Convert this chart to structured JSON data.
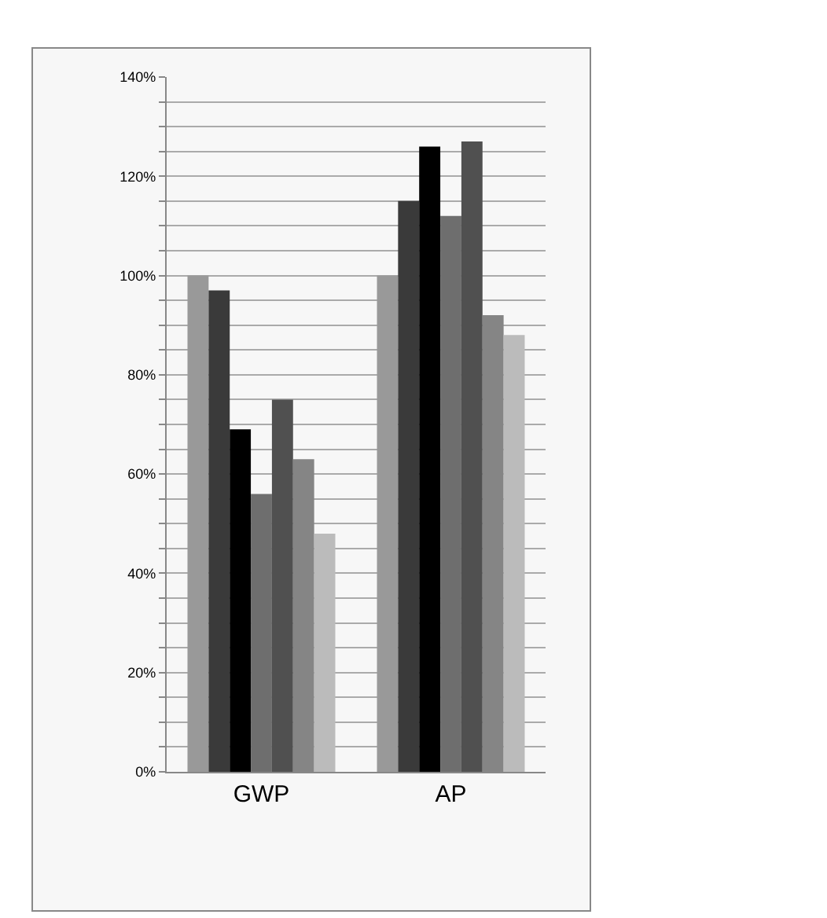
{
  "chart_data": {
    "type": "bar",
    "categories": [
      "GWP",
      "AP"
    ],
    "series": [
      {
        "color": "#999999",
        "values": [
          100,
          100
        ]
      },
      {
        "color": "#3a3a3a",
        "values": [
          97,
          115
        ]
      },
      {
        "color": "#000000",
        "values": [
          69,
          126
        ]
      },
      {
        "color": "#6e6e6e",
        "values": [
          56,
          112
        ]
      },
      {
        "color": "#505050",
        "values": [
          75,
          127
        ]
      },
      {
        "color": "#858585",
        "values": [
          63,
          92
        ]
      },
      {
        "color": "#bbbbbb",
        "values": [
          48,
          88
        ]
      }
    ],
    "ylim": [
      0,
      140
    ],
    "yticks": [
      {
        "value": 0,
        "label": "0%"
      },
      {
        "value": 5,
        "label": null
      },
      {
        "value": 10,
        "label": null
      },
      {
        "value": 15,
        "label": null
      },
      {
        "value": 20,
        "label": "20%"
      },
      {
        "value": 25,
        "label": null
      },
      {
        "value": 30,
        "label": null
      },
      {
        "value": 35,
        "label": null
      },
      {
        "value": 40,
        "label": "40%"
      },
      {
        "value": 45,
        "label": null
      },
      {
        "value": 50,
        "label": null
      },
      {
        "value": 55,
        "label": null
      },
      {
        "value": 60,
        "label": "60%"
      },
      {
        "value": 65,
        "label": null
      },
      {
        "value": 70,
        "label": null
      },
      {
        "value": 75,
        "label": null
      },
      {
        "value": 80,
        "label": "80%"
      },
      {
        "value": 85,
        "label": null
      },
      {
        "value": 90,
        "label": null
      },
      {
        "value": 95,
        "label": null
      },
      {
        "value": 100,
        "label": "100%"
      },
      {
        "value": 105,
        "label": null
      },
      {
        "value": 110,
        "label": null
      },
      {
        "value": 115,
        "label": null
      },
      {
        "value": 120,
        "label": "120%"
      },
      {
        "value": 125,
        "label": null
      },
      {
        "value": 130,
        "label": null
      },
      {
        "value": 135,
        "label": null
      },
      {
        "value": 140,
        "label": "140%"
      }
    ],
    "grid": "y"
  }
}
